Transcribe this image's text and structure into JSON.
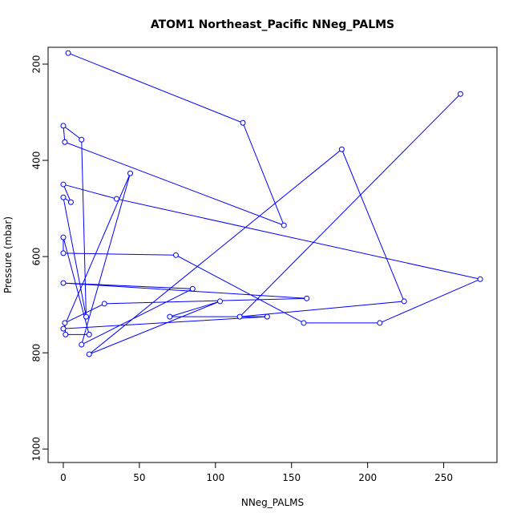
{
  "chart_data": {
    "type": "scatter",
    "title": "ATOM1 Northeast_Pacific NNeg_PALMS",
    "x_label": "NNeg_PALMS",
    "y_label": "Pressure (mbar)",
    "x": [
      3.2,
      118,
      145,
      1,
      0,
      12,
      15,
      0,
      5,
      0,
      35,
      274,
      208,
      158,
      74,
      0,
      0,
      17,
      1.5,
      1,
      27,
      160,
      0,
      85,
      12,
      44,
      0,
      134,
      70,
      103,
      17,
      183,
      224,
      116,
      261
    ],
    "y": [
      177,
      322,
      535,
      362,
      328,
      357,
      725,
      477,
      487,
      450,
      480,
      647,
      738,
      738,
      597,
      593,
      560,
      762,
      762,
      738,
      698,
      687,
      655,
      667,
      783,
      427,
      750,
      725,
      725,
      693,
      803,
      377,
      693,
      725,
      262
    ],
    "color": "#0000ff",
    "connect_points": true,
    "xlim": [
      -10,
      285
    ],
    "ylim": [
      165,
      1028
    ],
    "y_reversed": true,
    "xticks": [
      0,
      50,
      100,
      150,
      200,
      250
    ],
    "yticks": [
      200,
      400,
      600,
      800,
      1000
    ]
  }
}
